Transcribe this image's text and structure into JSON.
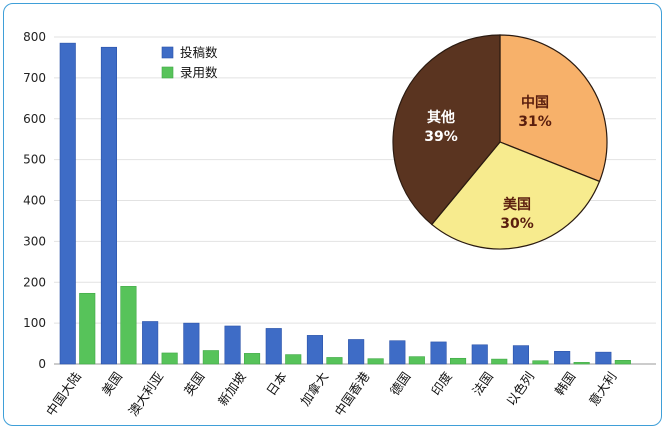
{
  "chart_data": [
    {
      "type": "bar",
      "categories": [
        "中国大陆",
        "美国",
        "澳大利亚",
        "英国",
        "新加坡",
        "日本",
        "加拿大",
        "中国香港",
        "德国",
        "印度",
        "法国",
        "以色列",
        "韩国",
        "意大利"
      ],
      "series": [
        {
          "name": "投稿数",
          "color": "#3e6cc6",
          "values": [
            785,
            775,
            104,
            100,
            93,
            87,
            70,
            60,
            57,
            54,
            47,
            45,
            31,
            29
          ]
        },
        {
          "name": "录用数",
          "color": "#57c35a",
          "values": [
            173,
            190,
            27,
            33,
            26,
            23,
            16,
            13,
            18,
            14,
            12,
            8,
            4,
            9
          ]
        }
      ],
      "ylim": [
        0,
        800
      ],
      "yticks": [
        0,
        100,
        200,
        300,
        400,
        500,
        600,
        700,
        800
      ],
      "grid": true,
      "legend": "top-left"
    },
    {
      "type": "pie",
      "slices": [
        {
          "label": "中国",
          "pct_label": "31%",
          "value": 31,
          "color": "#f7b16a",
          "text_color": "#5a1e0e"
        },
        {
          "label": "美国",
          "pct_label": "30%",
          "value": 30,
          "color": "#f7eb8e",
          "text_color": "#5a1e0e"
        },
        {
          "label": "其他",
          "pct_label": "39%",
          "value": 39,
          "color": "#5a3420",
          "text_color": "#ffffff"
        }
      ]
    }
  ]
}
